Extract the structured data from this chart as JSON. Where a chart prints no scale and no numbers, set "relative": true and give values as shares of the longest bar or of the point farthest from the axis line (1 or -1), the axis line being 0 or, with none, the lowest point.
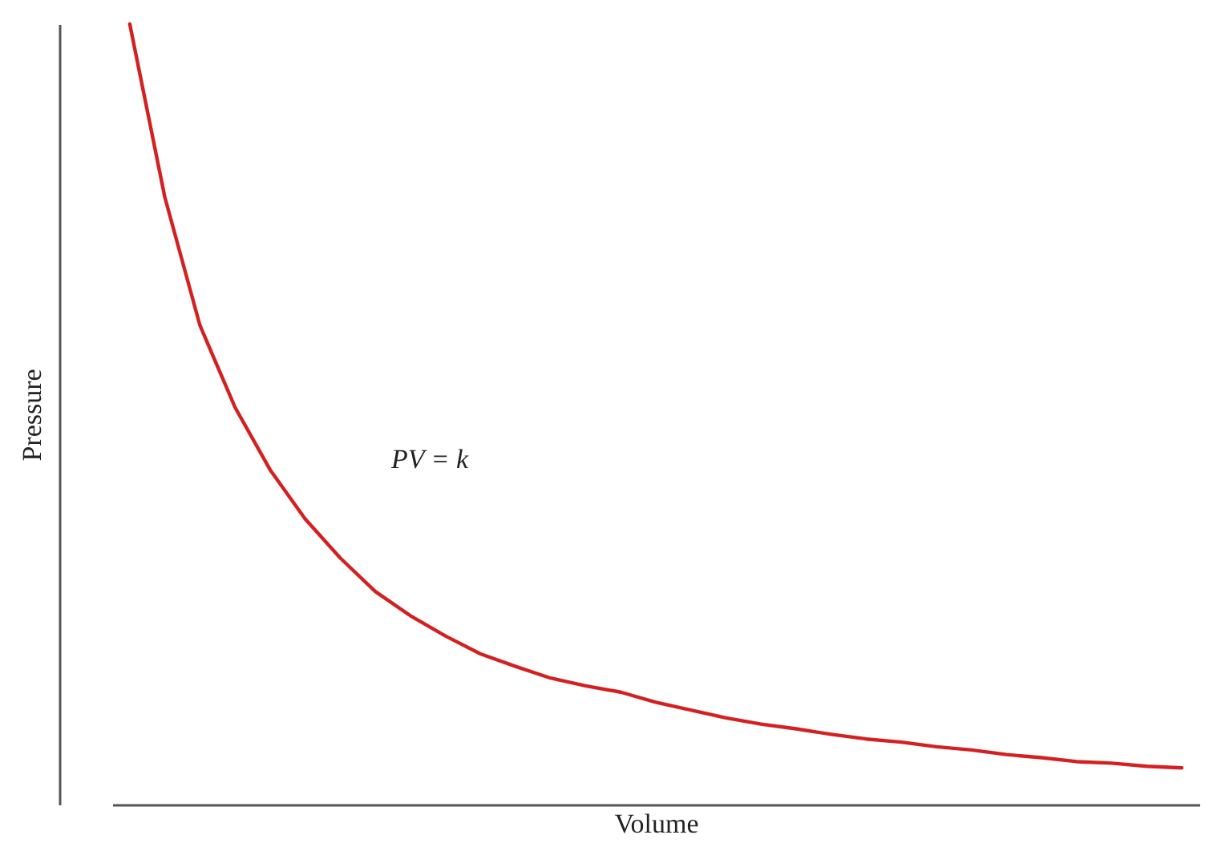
{
  "chart_data": {
    "type": "line",
    "relative": true,
    "xlabel": "Volume",
    "ylabel": "Pressure",
    "annotations": [
      "PV = k"
    ],
    "categories": [
      null,
      null,
      null,
      null,
      null,
      null,
      null,
      null,
      null,
      null,
      null,
      null,
      null,
      null,
      null,
      null,
      null,
      null,
      null,
      null,
      null,
      null,
      null,
      null,
      null,
      null,
      null,
      null,
      null,
      null,
      null
    ],
    "series": [
      {
        "color": "#d42020",
        "values": [
          1.0,
          0.778,
          0.614,
          0.509,
          0.429,
          0.366,
          0.316,
          0.273,
          0.242,
          0.216,
          0.193,
          0.177,
          0.162,
          0.152,
          0.144,
          0.131,
          0.121,
          0.111,
          0.103,
          0.097,
          0.09,
          0.084,
          0.08,
          0.074,
          0.07,
          0.064,
          0.06,
          0.055,
          0.053,
          0.049,
          0.047
        ]
      }
    ]
  }
}
